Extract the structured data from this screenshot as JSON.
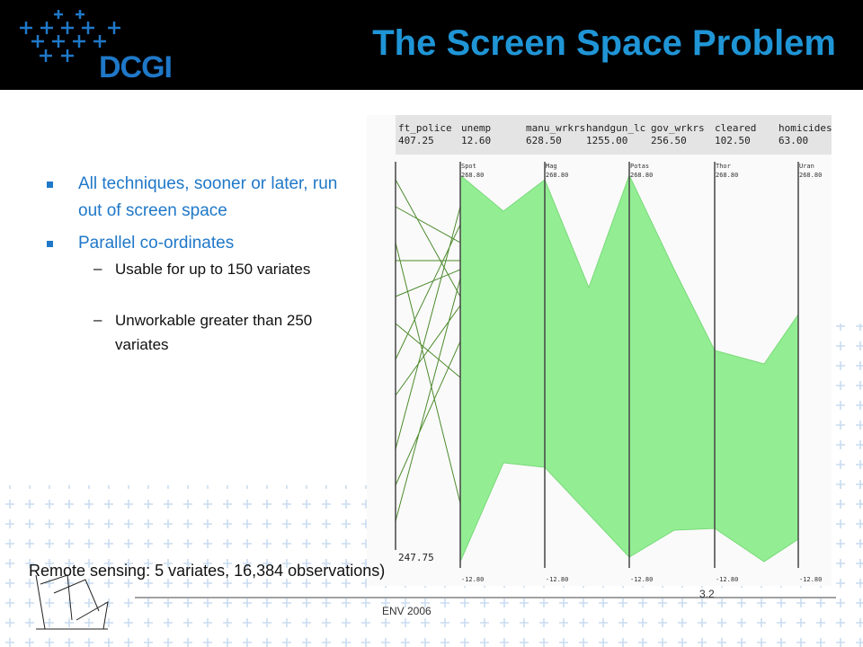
{
  "header": {
    "logo": "DCGI",
    "title": "The Screen Space Problem"
  },
  "bullets": [
    {
      "text": "All techniques, sooner or later, run out of screen space"
    },
    {
      "text": "Parallel co-ordinates",
      "sub": [
        "Usable for up to 150 variates",
        "Unworkable greater than 250 variates"
      ]
    }
  ],
  "figure": {
    "columns": [
      {
        "name": "ft_police",
        "value": "407.25"
      },
      {
        "name": "unemp",
        "value": "12.60"
      },
      {
        "name": "manu_wrkrs",
        "value": "628.50"
      },
      {
        "name": "handgun_lc",
        "value": "1255.00"
      },
      {
        "name": "gov_wrkrs",
        "value": "256.50"
      },
      {
        "name": "cleared",
        "value": "102.50"
      },
      {
        "name": "homicides",
        "value": "63.00"
      }
    ],
    "min_label": "247.75",
    "axes": [
      {
        "name": "Spot",
        "max": "268.80",
        "min": "-12.80"
      },
      {
        "name": "Mag",
        "max": "268.80",
        "min": "-12.80"
      },
      {
        "name": "Potas",
        "max": "268.80",
        "min": "-12.80"
      },
      {
        "name": "Thor",
        "max": "268.80",
        "min": "-12.80"
      },
      {
        "name": "Uran",
        "max": "268.80",
        "min": "-12.80"
      }
    ]
  },
  "caption": "Remote sensing: 5 variates, 16,384 observations)",
  "footer": {
    "event": "ENV 2006",
    "page": "3.2"
  }
}
